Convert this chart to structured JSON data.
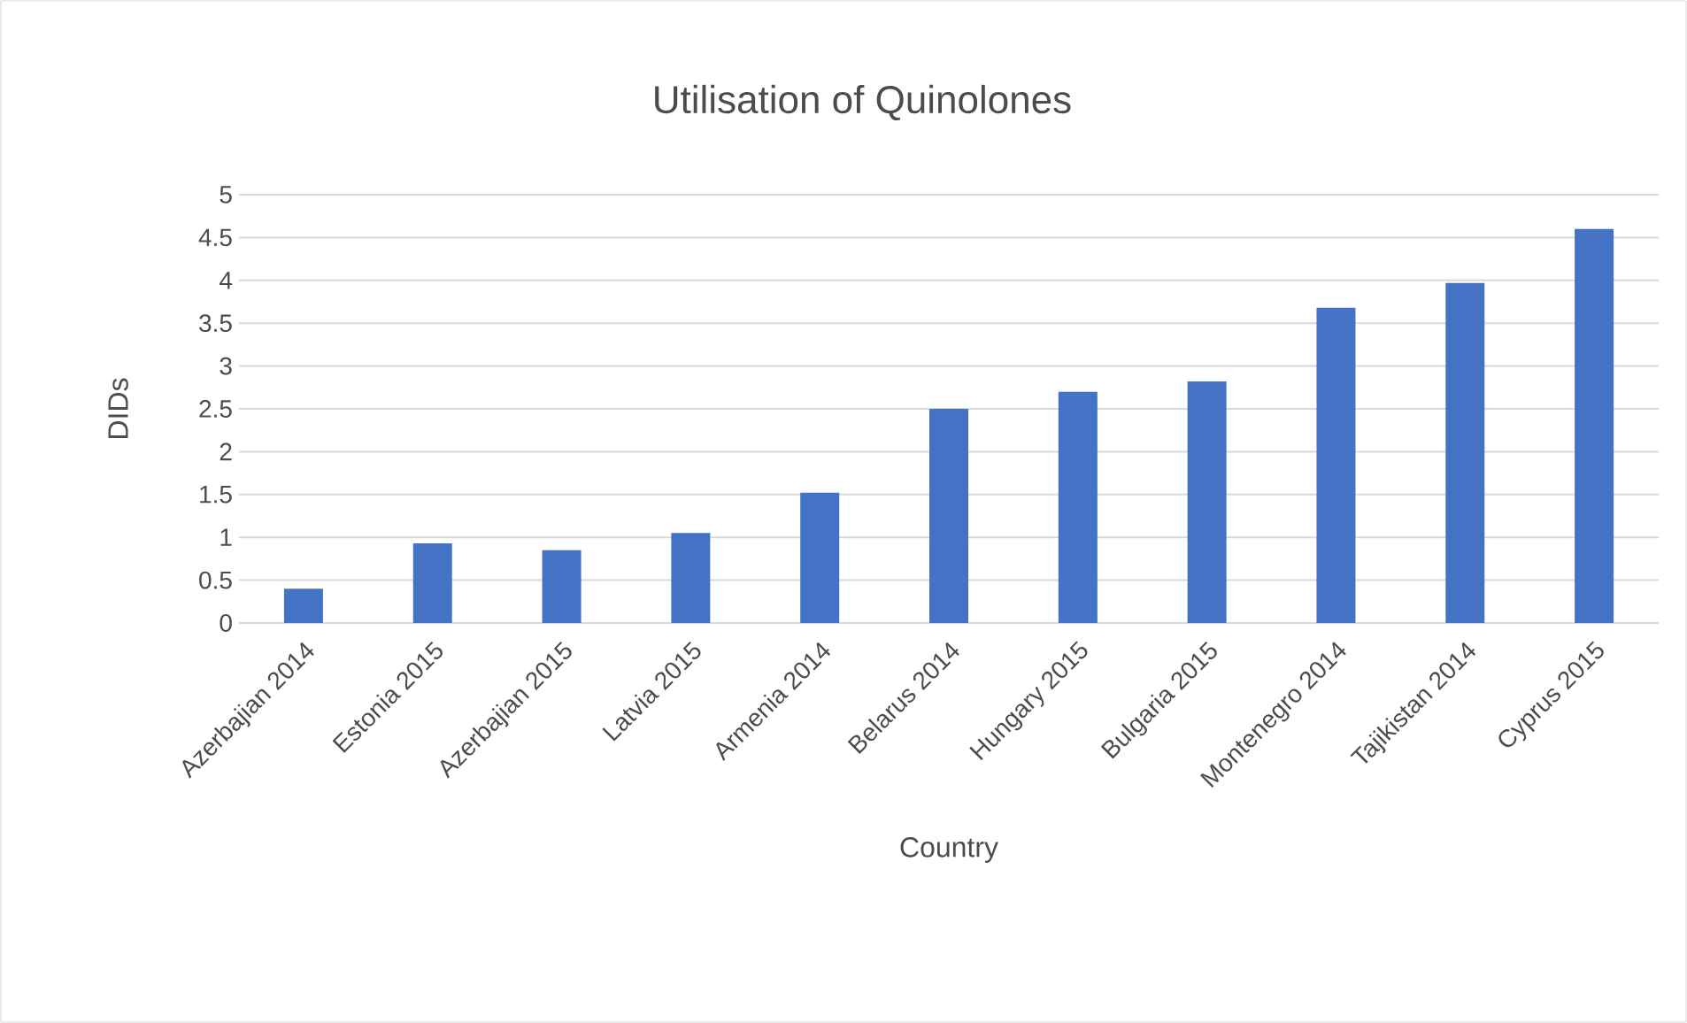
{
  "chart_data": {
    "type": "bar",
    "title": "Utilisation of Quinolones",
    "xlabel": "Country",
    "ylabel": "DIDs",
    "categories": [
      "Azerbajian 2014",
      "Estonia 2015",
      "Azerbajian 2015",
      "Latvia 2015",
      "Armenia 2014",
      "Belarus 2014",
      "Hungary 2015",
      "Bulgaria 2015",
      "Montenegro 2014",
      "Tajikistan 2014",
      "Cyprus 2015"
    ],
    "values": [
      0.4,
      0.93,
      0.85,
      1.05,
      1.52,
      2.5,
      2.7,
      2.82,
      3.68,
      3.97,
      4.6
    ],
    "color": "#4472c4",
    "ylim": [
      0,
      5
    ],
    "yticks": [
      0,
      0.5,
      1,
      1.5,
      2,
      2.5,
      3,
      3.5,
      4,
      4.5,
      5
    ],
    "grid": "y"
  }
}
